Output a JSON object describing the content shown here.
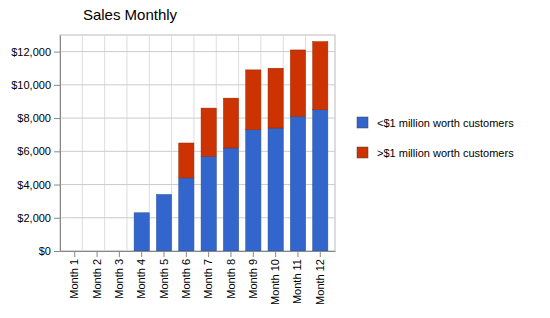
{
  "chart_data": {
    "type": "bar",
    "title": "Sales Monthly",
    "stacked": true,
    "grid": true,
    "legend": "right",
    "categories": [
      "Month 1",
      "Month 2",
      "Month 3",
      "Month 4",
      "Month 5",
      "Month 6",
      "Month 7",
      "Month 8",
      "Month 9",
      "Month 10",
      "Month 11",
      "Month 12"
    ],
    "series": [
      {
        "name": "<$1 million worth customers",
        "color": "#3366cc",
        "values": [
          0,
          0,
          0,
          2300,
          3400,
          4400,
          5700,
          6200,
          7300,
          7400,
          8100,
          8500
        ]
      },
      {
        "name": ">$1 million worth customers",
        "color": "#cc3300",
        "values": [
          0,
          0,
          0,
          0,
          0,
          2100,
          2900,
          3000,
          3600,
          3600,
          4000,
          4100
        ]
      }
    ],
    "ylim": [
      0,
      13000
    ],
    "yticks": [
      {
        "value": 0,
        "label": "$0"
      },
      {
        "value": 2000,
        "label": "$2,000"
      },
      {
        "value": 4000,
        "label": "$4,000"
      },
      {
        "value": 6000,
        "label": "$6,000"
      },
      {
        "value": 8000,
        "label": "$8,000"
      },
      {
        "value": 10000,
        "label": "$10,000"
      },
      {
        "value": 12000,
        "label": "$12,000"
      }
    ]
  }
}
